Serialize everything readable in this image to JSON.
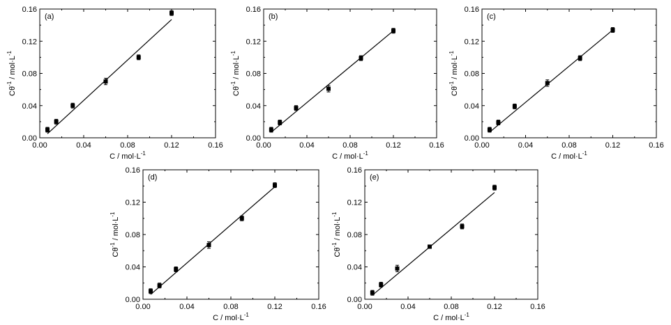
{
  "chart_data": [
    {
      "type": "scatter",
      "panel_label": "(a)",
      "xlabel": "C / mol·L",
      "xlabel_sup": "-1",
      "ylabel": "Cθ / mol·L",
      "ylabel_sup1": "-1",
      "ylabel_sup2": "-1",
      "xlim": [
        0.0,
        0.16
      ],
      "ylim": [
        0.0,
        0.16
      ],
      "xticks": [
        "0.00",
        "0.04",
        "0.08",
        "0.12",
        "0.16"
      ],
      "yticks": [
        "0.00",
        "0.04",
        "0.08",
        "0.12",
        "0.16"
      ],
      "points": [
        {
          "x": 0.007,
          "y": 0.01,
          "err": 0.003
        },
        {
          "x": 0.015,
          "y": 0.02,
          "err": 0.003
        },
        {
          "x": 0.03,
          "y": 0.04,
          "err": 0.003
        },
        {
          "x": 0.06,
          "y": 0.07,
          "err": 0.004
        },
        {
          "x": 0.09,
          "y": 0.1,
          "err": 0.003
        },
        {
          "x": 0.12,
          "y": 0.155,
          "err": 0.003
        }
      ],
      "fit_line": {
        "x": [
          0.007,
          0.12
        ],
        "y": [
          0.005,
          0.147
        ]
      }
    },
    {
      "type": "scatter",
      "panel_label": "(b)",
      "xlabel": "C / mol·L",
      "xlabel_sup": "-1",
      "ylabel": "Cθ / mol·L",
      "ylabel_sup1": "-1",
      "ylabel_sup2": "-1",
      "xlim": [
        0.0,
        0.16
      ],
      "ylim": [
        0.0,
        0.16
      ],
      "xticks": [
        "0.00",
        "0.04",
        "0.08",
        "0.12",
        "0.16"
      ],
      "yticks": [
        "0.00",
        "0.04",
        "0.08",
        "0.12",
        "0.16"
      ],
      "points": [
        {
          "x": 0.007,
          "y": 0.01,
          "err": 0.003
        },
        {
          "x": 0.015,
          "y": 0.019,
          "err": 0.003
        },
        {
          "x": 0.03,
          "y": 0.037,
          "err": 0.003
        },
        {
          "x": 0.06,
          "y": 0.061,
          "err": 0.004
        },
        {
          "x": 0.09,
          "y": 0.099,
          "err": 0.003
        },
        {
          "x": 0.12,
          "y": 0.133,
          "err": 0.003
        }
      ],
      "fit_line": {
        "x": [
          0.007,
          0.12
        ],
        "y": [
          0.007,
          0.133
        ]
      }
    },
    {
      "type": "scatter",
      "panel_label": "(c)",
      "xlabel": "C / mol·L",
      "xlabel_sup": "-1",
      "ylabel": "Cθ / mol·L",
      "ylabel_sup1": "-1",
      "ylabel_sup2": "-1",
      "xlim": [
        0.0,
        0.16
      ],
      "ylim": [
        0.0,
        0.16
      ],
      "xticks": [
        "0.00",
        "0.04",
        "0.08",
        "0.12",
        "0.16"
      ],
      "yticks": [
        "0.00",
        "0.04",
        "0.08",
        "0.12",
        "0.16"
      ],
      "points": [
        {
          "x": 0.007,
          "y": 0.01,
          "err": 0.003
        },
        {
          "x": 0.015,
          "y": 0.019,
          "err": 0.003
        },
        {
          "x": 0.03,
          "y": 0.039,
          "err": 0.003
        },
        {
          "x": 0.06,
          "y": 0.068,
          "err": 0.004
        },
        {
          "x": 0.09,
          "y": 0.099,
          "err": 0.003
        },
        {
          "x": 0.12,
          "y": 0.134,
          "err": 0.003
        }
      ],
      "fit_line": {
        "x": [
          0.007,
          0.12
        ],
        "y": [
          0.007,
          0.134
        ]
      }
    },
    {
      "type": "scatter",
      "panel_label": "(d)",
      "xlabel": "C / mol·L",
      "xlabel_sup": "-1",
      "ylabel": "Cθ / mol·L",
      "ylabel_sup1": "-1",
      "ylabel_sup2": "-1",
      "xlim": [
        0.0,
        0.16
      ],
      "ylim": [
        0.0,
        0.16
      ],
      "xticks": [
        "0.00",
        "0.04",
        "0.08",
        "0.12",
        "0.16"
      ],
      "yticks": [
        "0.00",
        "0.04",
        "0.08",
        "0.12",
        "0.16"
      ],
      "points": [
        {
          "x": 0.007,
          "y": 0.01,
          "err": 0.003
        },
        {
          "x": 0.015,
          "y": 0.017,
          "err": 0.003
        },
        {
          "x": 0.03,
          "y": 0.037,
          "err": 0.003
        },
        {
          "x": 0.06,
          "y": 0.067,
          "err": 0.004
        },
        {
          "x": 0.09,
          "y": 0.1,
          "err": 0.003
        },
        {
          "x": 0.12,
          "y": 0.141,
          "err": 0.003
        }
      ],
      "fit_line": {
        "x": [
          0.007,
          0.12
        ],
        "y": [
          0.006,
          0.139
        ]
      }
    },
    {
      "type": "scatter",
      "panel_label": "(e)",
      "xlabel": "C / mol·L",
      "xlabel_sup": "-1",
      "ylabel": "Cθ / mol·L",
      "ylabel_sup1": "-1",
      "ylabel_sup2": "-1",
      "xlim": [
        0.0,
        0.16
      ],
      "ylim": [
        0.0,
        0.16
      ],
      "xticks": [
        "0.00",
        "0.04",
        "0.08",
        "0.12",
        "0.16"
      ],
      "yticks": [
        "0.00",
        "0.04",
        "0.08",
        "0.12",
        "0.16"
      ],
      "points": [
        {
          "x": 0.007,
          "y": 0.008,
          "err": 0.003
        },
        {
          "x": 0.015,
          "y": 0.018,
          "err": 0.003
        },
        {
          "x": 0.03,
          "y": 0.038,
          "err": 0.004
        },
        {
          "x": 0.06,
          "y": 0.065,
          "err": 0.002
        },
        {
          "x": 0.09,
          "y": 0.09,
          "err": 0.003
        },
        {
          "x": 0.12,
          "y": 0.138,
          "err": 0.003
        }
      ],
      "fit_line": {
        "x": [
          0.007,
          0.12
        ],
        "y": [
          0.005,
          0.132
        ]
      }
    }
  ]
}
